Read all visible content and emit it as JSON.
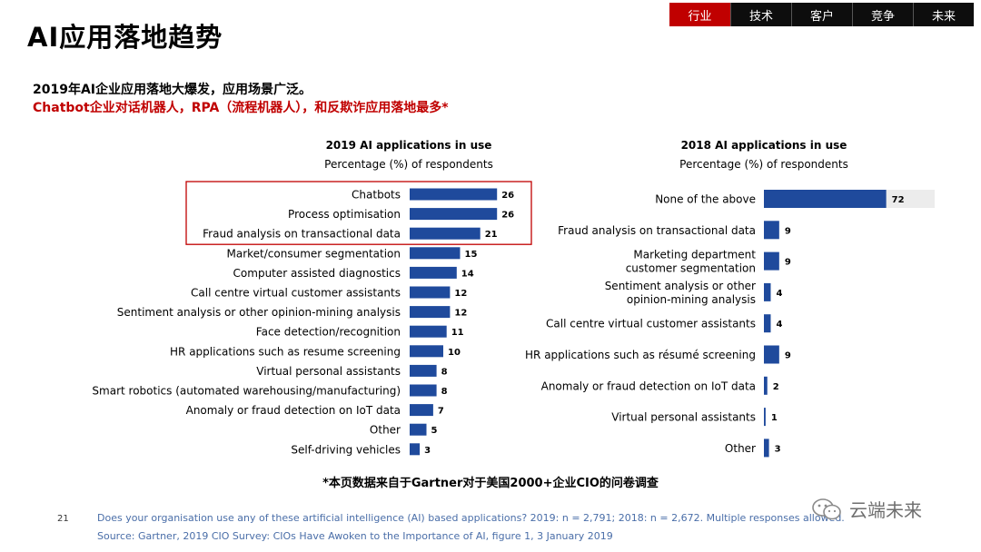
{
  "nav": {
    "tabs": [
      "行业",
      "技术",
      "客户",
      "竞争",
      "未来"
    ],
    "active_index": 0
  },
  "page": {
    "title": "AI应用落地趋势",
    "subtitle1": "2019年AI企业应用落地大爆发，应用场景广泛。",
    "subtitle2": "Chatbot企业对话机器人，RPA（流程机器人），和反欺诈应用落地最多*",
    "footnote_cn": "*本页数据来自于Gartner对于美国2000+企业CIO的问卷调查",
    "page_number": "21",
    "source_line1": "Does your organisation use any of these artificial intelligence (AI) based applications? 2019: n = 2,791; 2018: n = 2,672. Multiple responses allowed.",
    "source_line2": "Source: Gartner, 2019 CIO Survey: CIOs Have Awoken to the Importance of AI, figure 1, 3 January 2019",
    "watermark": "云端未来",
    "colors": {
      "bar": "#1f4a9c",
      "accent": "#c00000",
      "highlight_bg": "#ececec"
    }
  },
  "chart_data": [
    {
      "type": "bar",
      "orientation": "horizontal",
      "title": "2019 AI applications in use",
      "subtitle": "Percentage (%) of respondents",
      "categories": [
        "Chatbots",
        "Process optimisation",
        "Fraud analysis on transactional data",
        "Market/consumer segmentation",
        "Computer assisted diagnostics",
        "Call centre virtual customer assistants",
        "Sentiment analysis or other opinion-mining analysis",
        "Face detection/recognition",
        "HR applications such as resume screening",
        "Virtual personal assistants",
        "Smart robotics (automated warehousing/manufacturing)",
        "Anomaly or fraud detection on IoT data",
        "Other",
        "Self-driving vehicles"
      ],
      "values": [
        26,
        26,
        21,
        15,
        14,
        12,
        12,
        11,
        10,
        8,
        8,
        7,
        5,
        3
      ],
      "highlighted_indices": [
        0,
        1,
        2
      ],
      "xlim": [
        0,
        100
      ]
    },
    {
      "type": "bar",
      "orientation": "horizontal",
      "title": "2018 AI applications in use",
      "subtitle": "Percentage (%) of respondents",
      "categories": [
        [
          "None of the above"
        ],
        [
          "Fraud analysis on transactional data"
        ],
        [
          "Marketing department",
          "customer segmentation"
        ],
        [
          "Sentiment analysis or other",
          "opinion-mining analysis"
        ],
        [
          "Call centre virtual customer assistants"
        ],
        [
          "HR applications such as résumé screening"
        ],
        [
          "Anomaly or fraud detection on IoT data"
        ],
        [
          "Virtual personal assistants"
        ],
        [
          "Other"
        ]
      ],
      "values": [
        72,
        9,
        9,
        4,
        4,
        9,
        2,
        1,
        3
      ],
      "xlim": [
        0,
        100
      ]
    }
  ]
}
